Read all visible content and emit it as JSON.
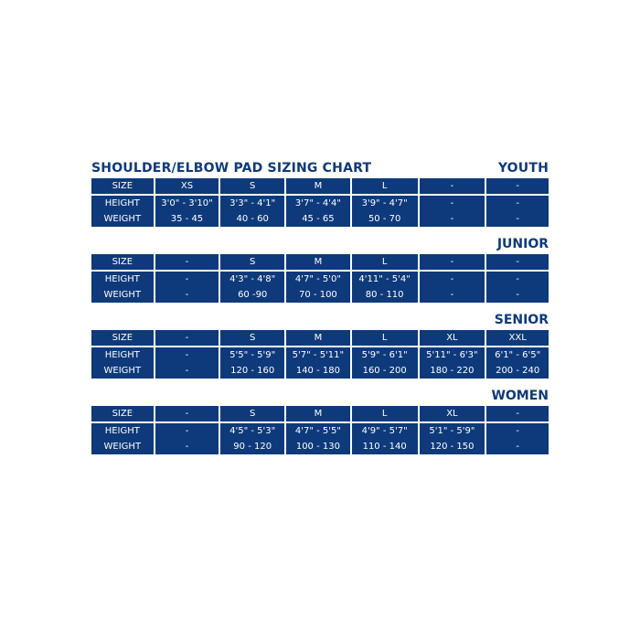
{
  "title": "SHOULDER/ELBOW PAD SIZING CHART",
  "sections": [
    {
      "label": "YOUTH",
      "rows": [
        {
          "label": "SIZE",
          "cells": [
            "XS",
            "S",
            "M",
            "L",
            "-",
            "-"
          ]
        },
        {
          "label": "HEIGHT",
          "cells": [
            "3'0\" - 3'10\"",
            "3'3\" - 4'1\"",
            "3'7\" - 4'4\"",
            "3'9\" - 4'7\"",
            "-",
            "-"
          ]
        },
        {
          "label": "WEIGHT",
          "cells": [
            "35 - 45",
            "40 - 60",
            "45 - 65",
            "50 - 70",
            "-",
            "-"
          ]
        }
      ]
    },
    {
      "label": "JUNIOR",
      "rows": [
        {
          "label": "SIZE",
          "cells": [
            "-",
            "S",
            "M",
            "L",
            "-",
            "-"
          ]
        },
        {
          "label": "HEIGHT",
          "cells": [
            "-",
            "4'3\" - 4'8\"",
            "4'7\" - 5'0\"",
            "4'11\" - 5'4\"",
            "-",
            "-"
          ]
        },
        {
          "label": "WEIGHT",
          "cells": [
            "-",
            "60 -90",
            "70 - 100",
            "80 - 110",
            "-",
            "-"
          ]
        }
      ]
    },
    {
      "label": "SENIOR",
      "rows": [
        {
          "label": "SIZE",
          "cells": [
            "-",
            "S",
            "M",
            "L",
            "XL",
            "XXL"
          ]
        },
        {
          "label": "HEIGHT",
          "cells": [
            "-",
            "5'5\" - 5'9\"",
            "5'7\" - 5'11\"",
            "5'9\" - 6'1\"",
            "5'11\" - 6'3\"",
            "6'1\" - 6'5\""
          ]
        },
        {
          "label": "WEIGHT",
          "cells": [
            "-",
            "120 - 160",
            "140 - 180",
            "160 - 200",
            "180 - 220",
            "200 - 240"
          ]
        }
      ]
    },
    {
      "label": "WOMEN",
      "rows": [
        {
          "label": "SIZE",
          "cells": [
            "-",
            "S",
            "M",
            "L",
            "XL",
            "-"
          ]
        },
        {
          "label": "HEIGHT",
          "cells": [
            "-",
            "4'5\" - 5'3\"",
            "4'7\" - 5'5\"",
            "4'9\" - 5'7\"",
            "5'1\" - 5'9\"",
            "-"
          ]
        },
        {
          "label": "WEIGHT",
          "cells": [
            "-",
            "90 - 120",
            "100 - 130",
            "110 - 140",
            "120 - 150",
            "-"
          ]
        }
      ]
    }
  ],
  "colors": {
    "brand_navy": "#0e3a7b",
    "background": "#ffffff",
    "cell_text": "#ffffff"
  }
}
